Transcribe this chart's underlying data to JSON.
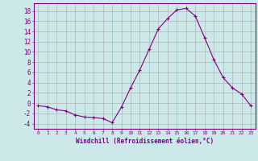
{
  "x": [
    0,
    1,
    2,
    3,
    4,
    5,
    6,
    7,
    8,
    9,
    10,
    11,
    12,
    13,
    14,
    15,
    16,
    17,
    18,
    19,
    20,
    21,
    22,
    23
  ],
  "y": [
    -0.5,
    -0.7,
    -1.3,
    -1.5,
    -2.3,
    -2.7,
    -2.8,
    -3.0,
    -3.8,
    -0.8,
    3.0,
    6.5,
    10.5,
    14.5,
    16.5,
    18.2,
    18.5,
    17.0,
    12.8,
    8.5,
    5.0,
    3.0,
    1.8,
    -0.5
  ],
  "line_color": "#800080",
  "marker": "+",
  "marker_size": 3,
  "background_color": "#cce8e8",
  "grid_color": "#aaaaaa",
  "xlabel": "Windchill (Refroidissement éolien,°C)",
  "ylabel_ticks": [
    -4,
    -2,
    0,
    2,
    4,
    6,
    8,
    10,
    12,
    14,
    16,
    18
  ],
  "xlim": [
    -0.5,
    23.5
  ],
  "ylim": [
    -5,
    19.5
  ],
  "tick_color": "#800080",
  "tick_label_color": "#800080",
  "xlabel_color": "#800080",
  "axis_color": "#800080",
  "figsize": [
    3.2,
    2.0
  ],
  "dpi": 100
}
